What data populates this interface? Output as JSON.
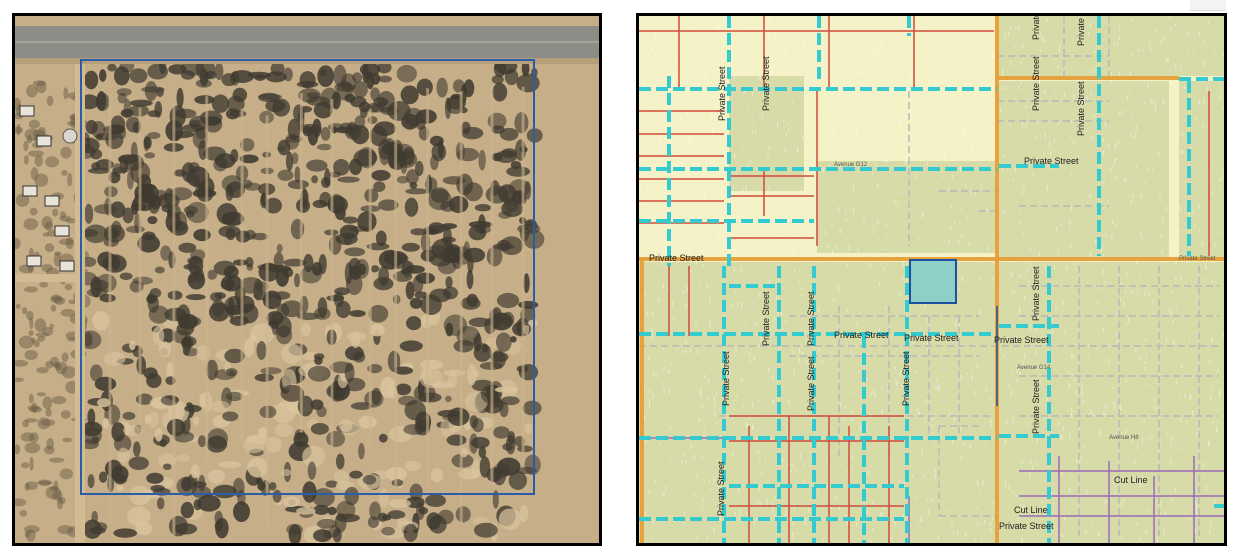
{
  "aerial_map": {
    "type": "aerial-photo",
    "boundary_color": "#2a5ca8",
    "road_color": "#8d8d88",
    "ground_color": "#c6ae88",
    "vegetation_color": "#3f3a30"
  },
  "parcel_map": {
    "type": "parcel-map",
    "colors": {
      "background": "#f4f2c6",
      "parcel_fill": "#d6dba8",
      "major_road": "#e6a23c",
      "dashed_boundary": "#35c9d0",
      "lot_line": "#d04a3a",
      "cut_line": "#9a6ab8",
      "subject_parcel": "#8fcfc8",
      "subject_outline": "#1f4fa0",
      "minor_dashed": "#b8b8b8"
    },
    "labels": [
      "Private Street",
      "Private Street",
      "Private Street",
      "Private Street",
      "Private Street",
      "Private Street",
      "Private Street",
      "Private Street",
      "Private Street",
      "Private Street",
      "Private Street",
      "Private Street",
      "Private Street",
      "Private Street",
      "Private Street",
      "Private Street",
      "Private Street",
      "Private Street",
      "Private Street",
      "Cut Line",
      "Cut Line"
    ],
    "small_labels": [
      "Avenue G12",
      "Avenue G14",
      "Avenue H8",
      "Private Street"
    ]
  }
}
